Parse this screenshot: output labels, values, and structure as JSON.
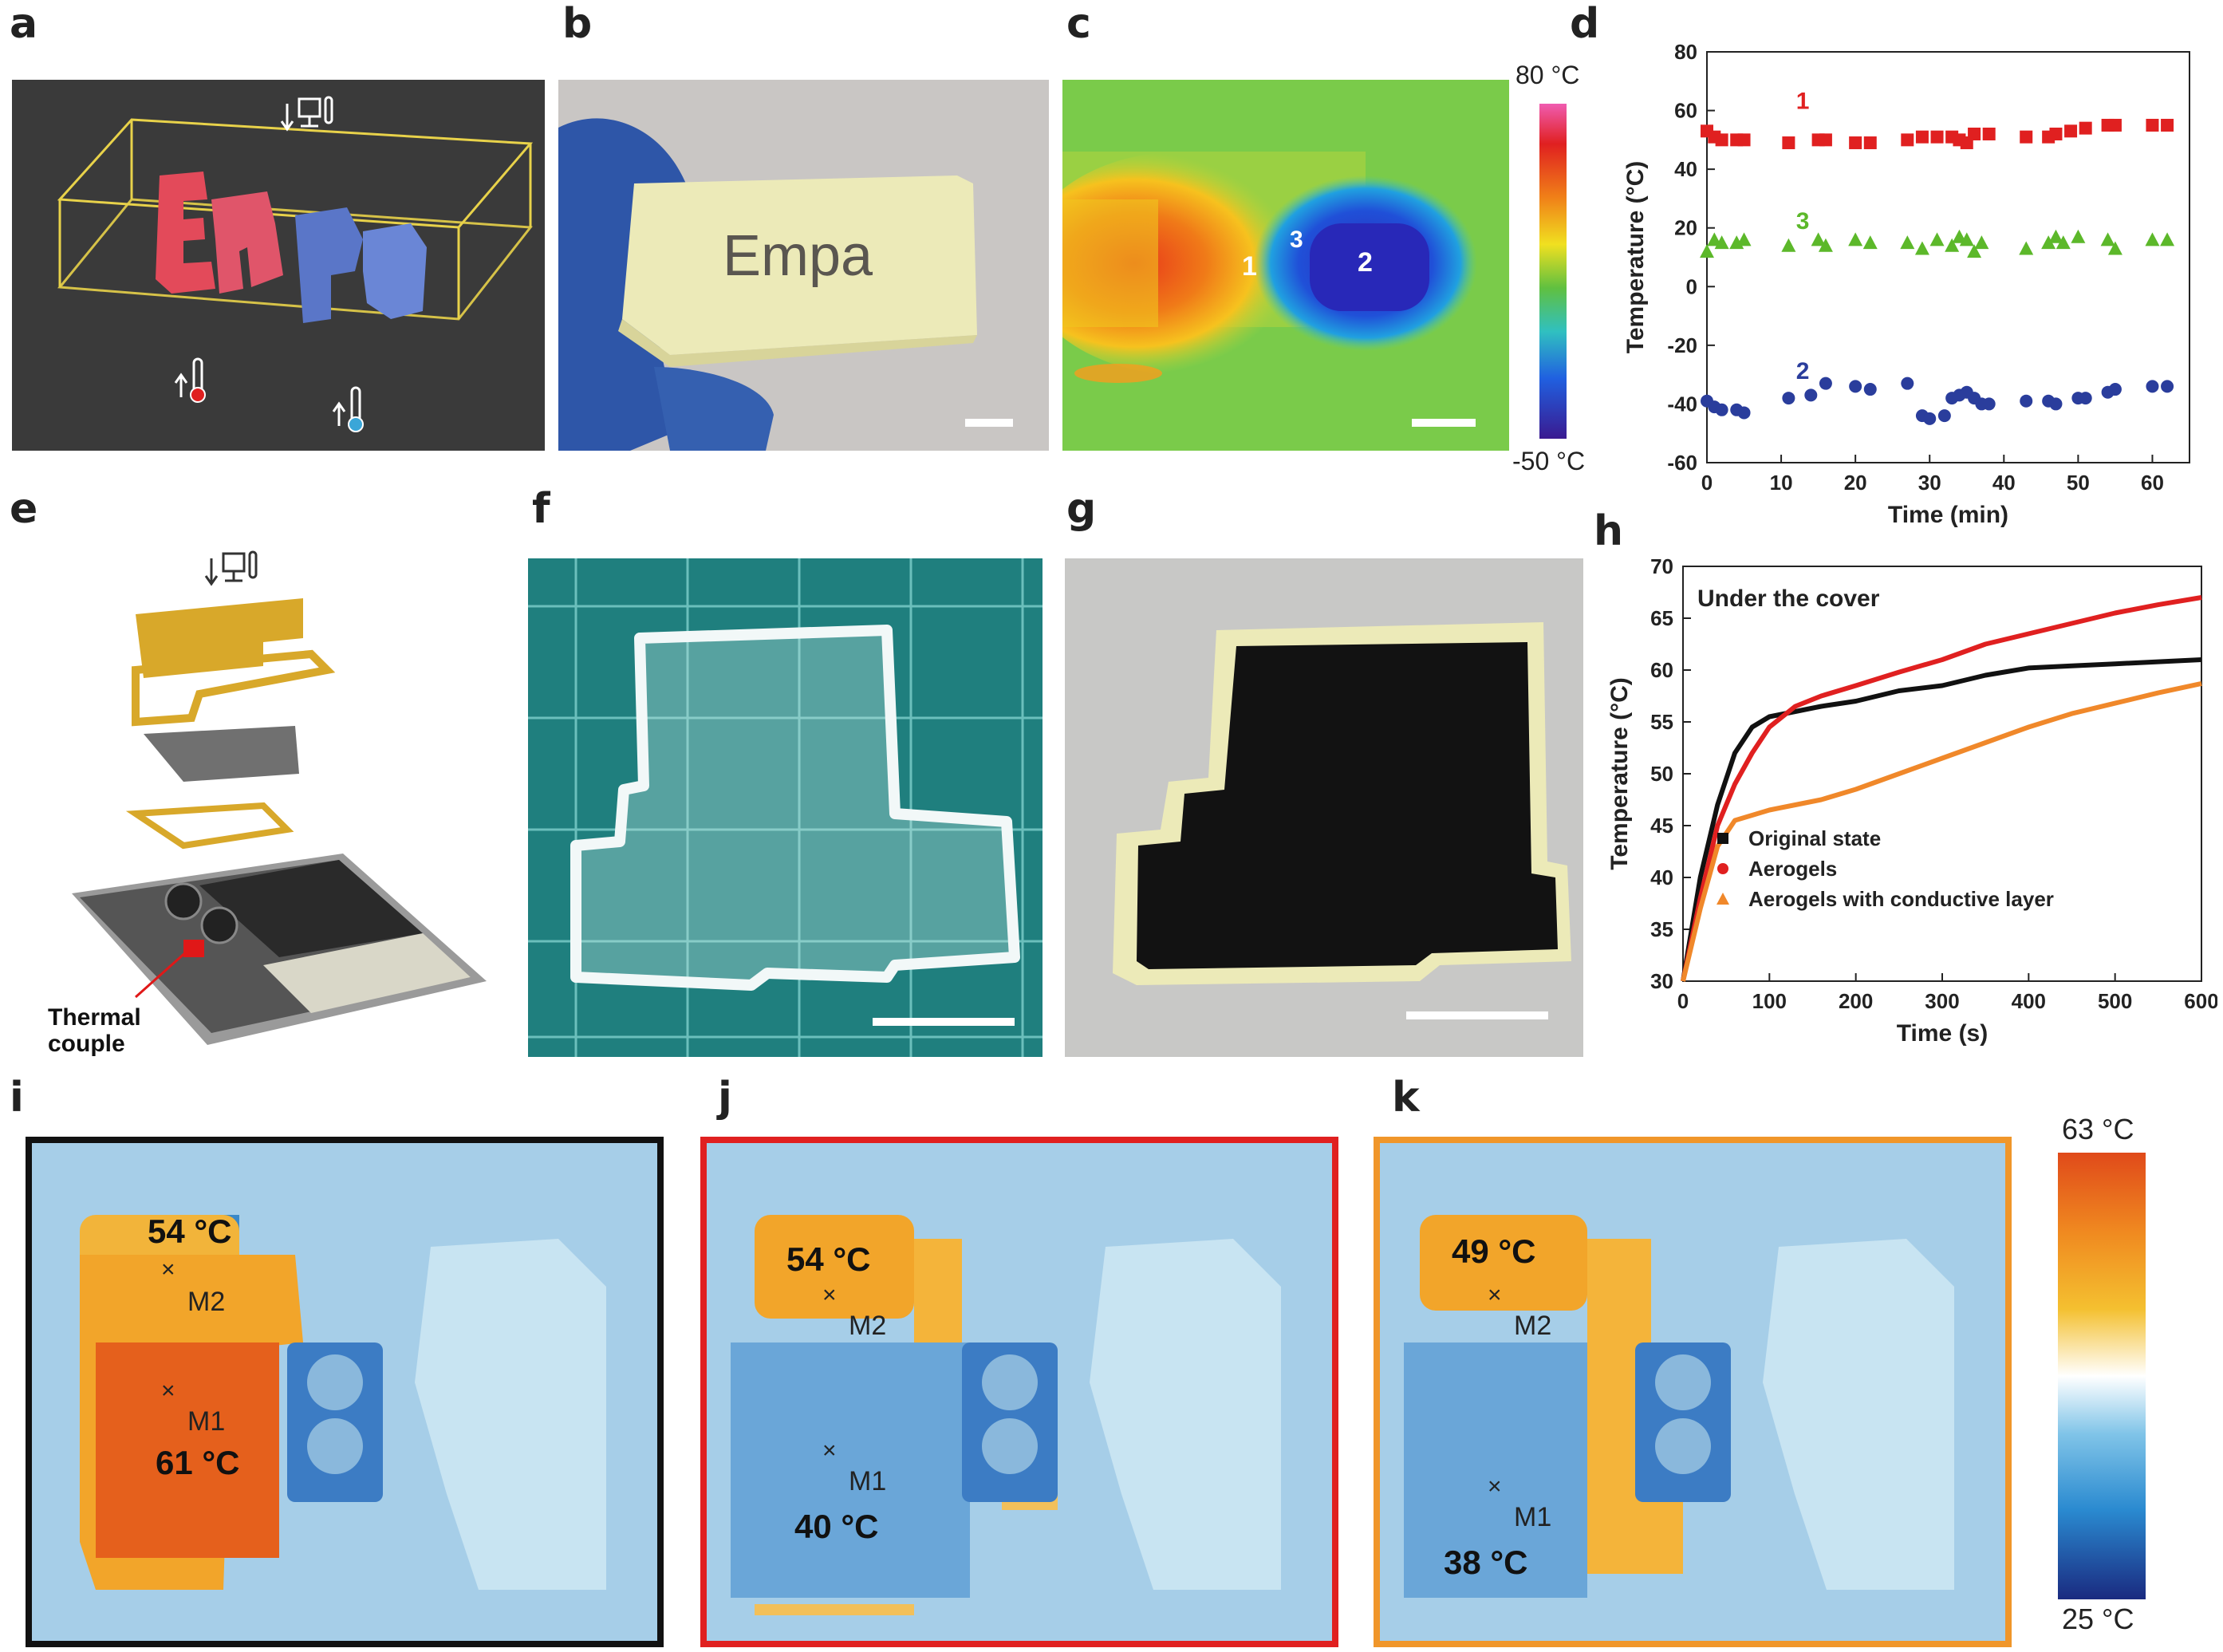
{
  "panel_labels": {
    "a": "a",
    "b": "b",
    "c": "c",
    "d": "d",
    "e": "e",
    "f": "f",
    "g": "g",
    "h": "h",
    "i": "i",
    "j": "j",
    "k": "k"
  },
  "panel_b": {
    "text": "Empa"
  },
  "panel_c": {
    "max": "80 °C",
    "min": "-50 °C",
    "points": [
      "1",
      "2",
      "3"
    ]
  },
  "panel_e": {
    "thermal_label": "Thermal",
    "couple_label": "couple"
  },
  "panel_i": {
    "m2_temp": "54 °C",
    "m1_temp": "61 °C",
    "m2": "M2",
    "m1": "M1"
  },
  "panel_j": {
    "m2_temp": "54 °C",
    "m1_temp": "40 °C",
    "m2": "M2",
    "m1": "M1"
  },
  "panel_k": {
    "m2_temp": "49 °C",
    "m1_temp": "38 °C",
    "m2": "M2",
    "m1": "M1"
  },
  "colorbar_ik": {
    "max": "63 °C",
    "min": "25 °C"
  },
  "chart_data": [
    {
      "type": "scatter",
      "panel": "d",
      "xlabel": "Time (min)",
      "ylabel": "Temperature (°C)",
      "xlim": [
        0,
        65
      ],
      "ylim": [
        -60,
        80
      ],
      "xticks": [
        "0",
        "10",
        "20",
        "30",
        "40",
        "50",
        "60"
      ],
      "yticks": [
        "-60",
        "-40",
        "-20",
        "0",
        "20",
        "40",
        "60",
        "80"
      ],
      "series": [
        {
          "name": "1",
          "color": "#e02020",
          "marker": "square",
          "x": [
            0,
            1,
            2,
            4,
            5,
            11,
            15,
            16,
            20,
            22,
            27,
            29,
            31,
            33,
            34,
            35,
            36,
            38,
            43,
            46,
            47,
            49,
            51,
            54,
            55,
            60,
            62
          ],
          "y": [
            53,
            51,
            50,
            50,
            50,
            49,
            50,
            50,
            49,
            49,
            50,
            51,
            51,
            51,
            50,
            49,
            52,
            52,
            51,
            51,
            52,
            53,
            54,
            55,
            55,
            55,
            55
          ]
        },
        {
          "name": "3",
          "color": "#5cb82a",
          "marker": "triangle",
          "x": [
            0,
            1,
            2,
            4,
            5,
            11,
            15,
            16,
            20,
            22,
            27,
            29,
            31,
            33,
            34,
            35,
            36,
            37,
            43,
            46,
            47,
            48,
            50,
            54,
            55,
            60,
            62
          ],
          "y": [
            12,
            16,
            15,
            15,
            16,
            14,
            16,
            14,
            16,
            15,
            15,
            13,
            16,
            14,
            17,
            16,
            12,
            15,
            13,
            15,
            17,
            15,
            17,
            16,
            13,
            16,
            16
          ]
        },
        {
          "name": "2",
          "color": "#2a3d9c",
          "marker": "circle",
          "x": [
            0,
            1,
            2,
            4,
            5,
            11,
            14,
            16,
            20,
            22,
            27,
            29,
            30,
            32,
            33,
            34,
            35,
            36,
            37,
            38,
            43,
            46,
            47,
            50,
            51,
            54,
            55,
            60,
            62
          ],
          "y": [
            -39,
            -41,
            -42,
            -42,
            -43,
            -38,
            -37,
            -33,
            -34,
            -35,
            -33,
            -44,
            -45,
            -44,
            -38,
            -37,
            -36,
            -38,
            -40,
            -40,
            -39,
            -39,
            -40,
            -38,
            -38,
            -36,
            -35,
            -34,
            -34
          ]
        }
      ]
    },
    {
      "type": "line",
      "panel": "h",
      "title": "Under the cover",
      "xlabel": "Time (s)",
      "ylabel": "Temperature (°C)",
      "xlim": [
        0,
        600
      ],
      "ylim": [
        30,
        70
      ],
      "xticks": [
        "0",
        "100",
        "200",
        "300",
        "400",
        "500",
        "600"
      ],
      "yticks": [
        "30",
        "35",
        "40",
        "45",
        "50",
        "55",
        "60",
        "65",
        "70"
      ],
      "x": [
        0,
        20,
        40,
        60,
        80,
        100,
        130,
        160,
        200,
        250,
        300,
        350,
        400,
        450,
        500,
        550,
        600
      ],
      "series": [
        {
          "name": "Original state",
          "color": "#111111",
          "marker": "square",
          "values": [
            30,
            40,
            47,
            52,
            54.5,
            55.5,
            56,
            56.5,
            57,
            58,
            58.5,
            59.5,
            60.2,
            60.4,
            60.6,
            60.8,
            61
          ]
        },
        {
          "name": "Aerogels",
          "color": "#e02020",
          "marker": "circle",
          "values": [
            30,
            38,
            45,
            49,
            52,
            54.5,
            56.5,
            57.5,
            58.5,
            59.8,
            61,
            62.5,
            63.5,
            64.5,
            65.5,
            66.3,
            67
          ]
        },
        {
          "name": "Aerogels with conductive layer",
          "color": "#f0882a",
          "marker": "triangle",
          "values": [
            30,
            37,
            43,
            45.5,
            46,
            46.5,
            47,
            47.5,
            48.5,
            50,
            51.5,
            53,
            54.5,
            55.8,
            56.8,
            57.8,
            58.7
          ]
        }
      ]
    }
  ]
}
